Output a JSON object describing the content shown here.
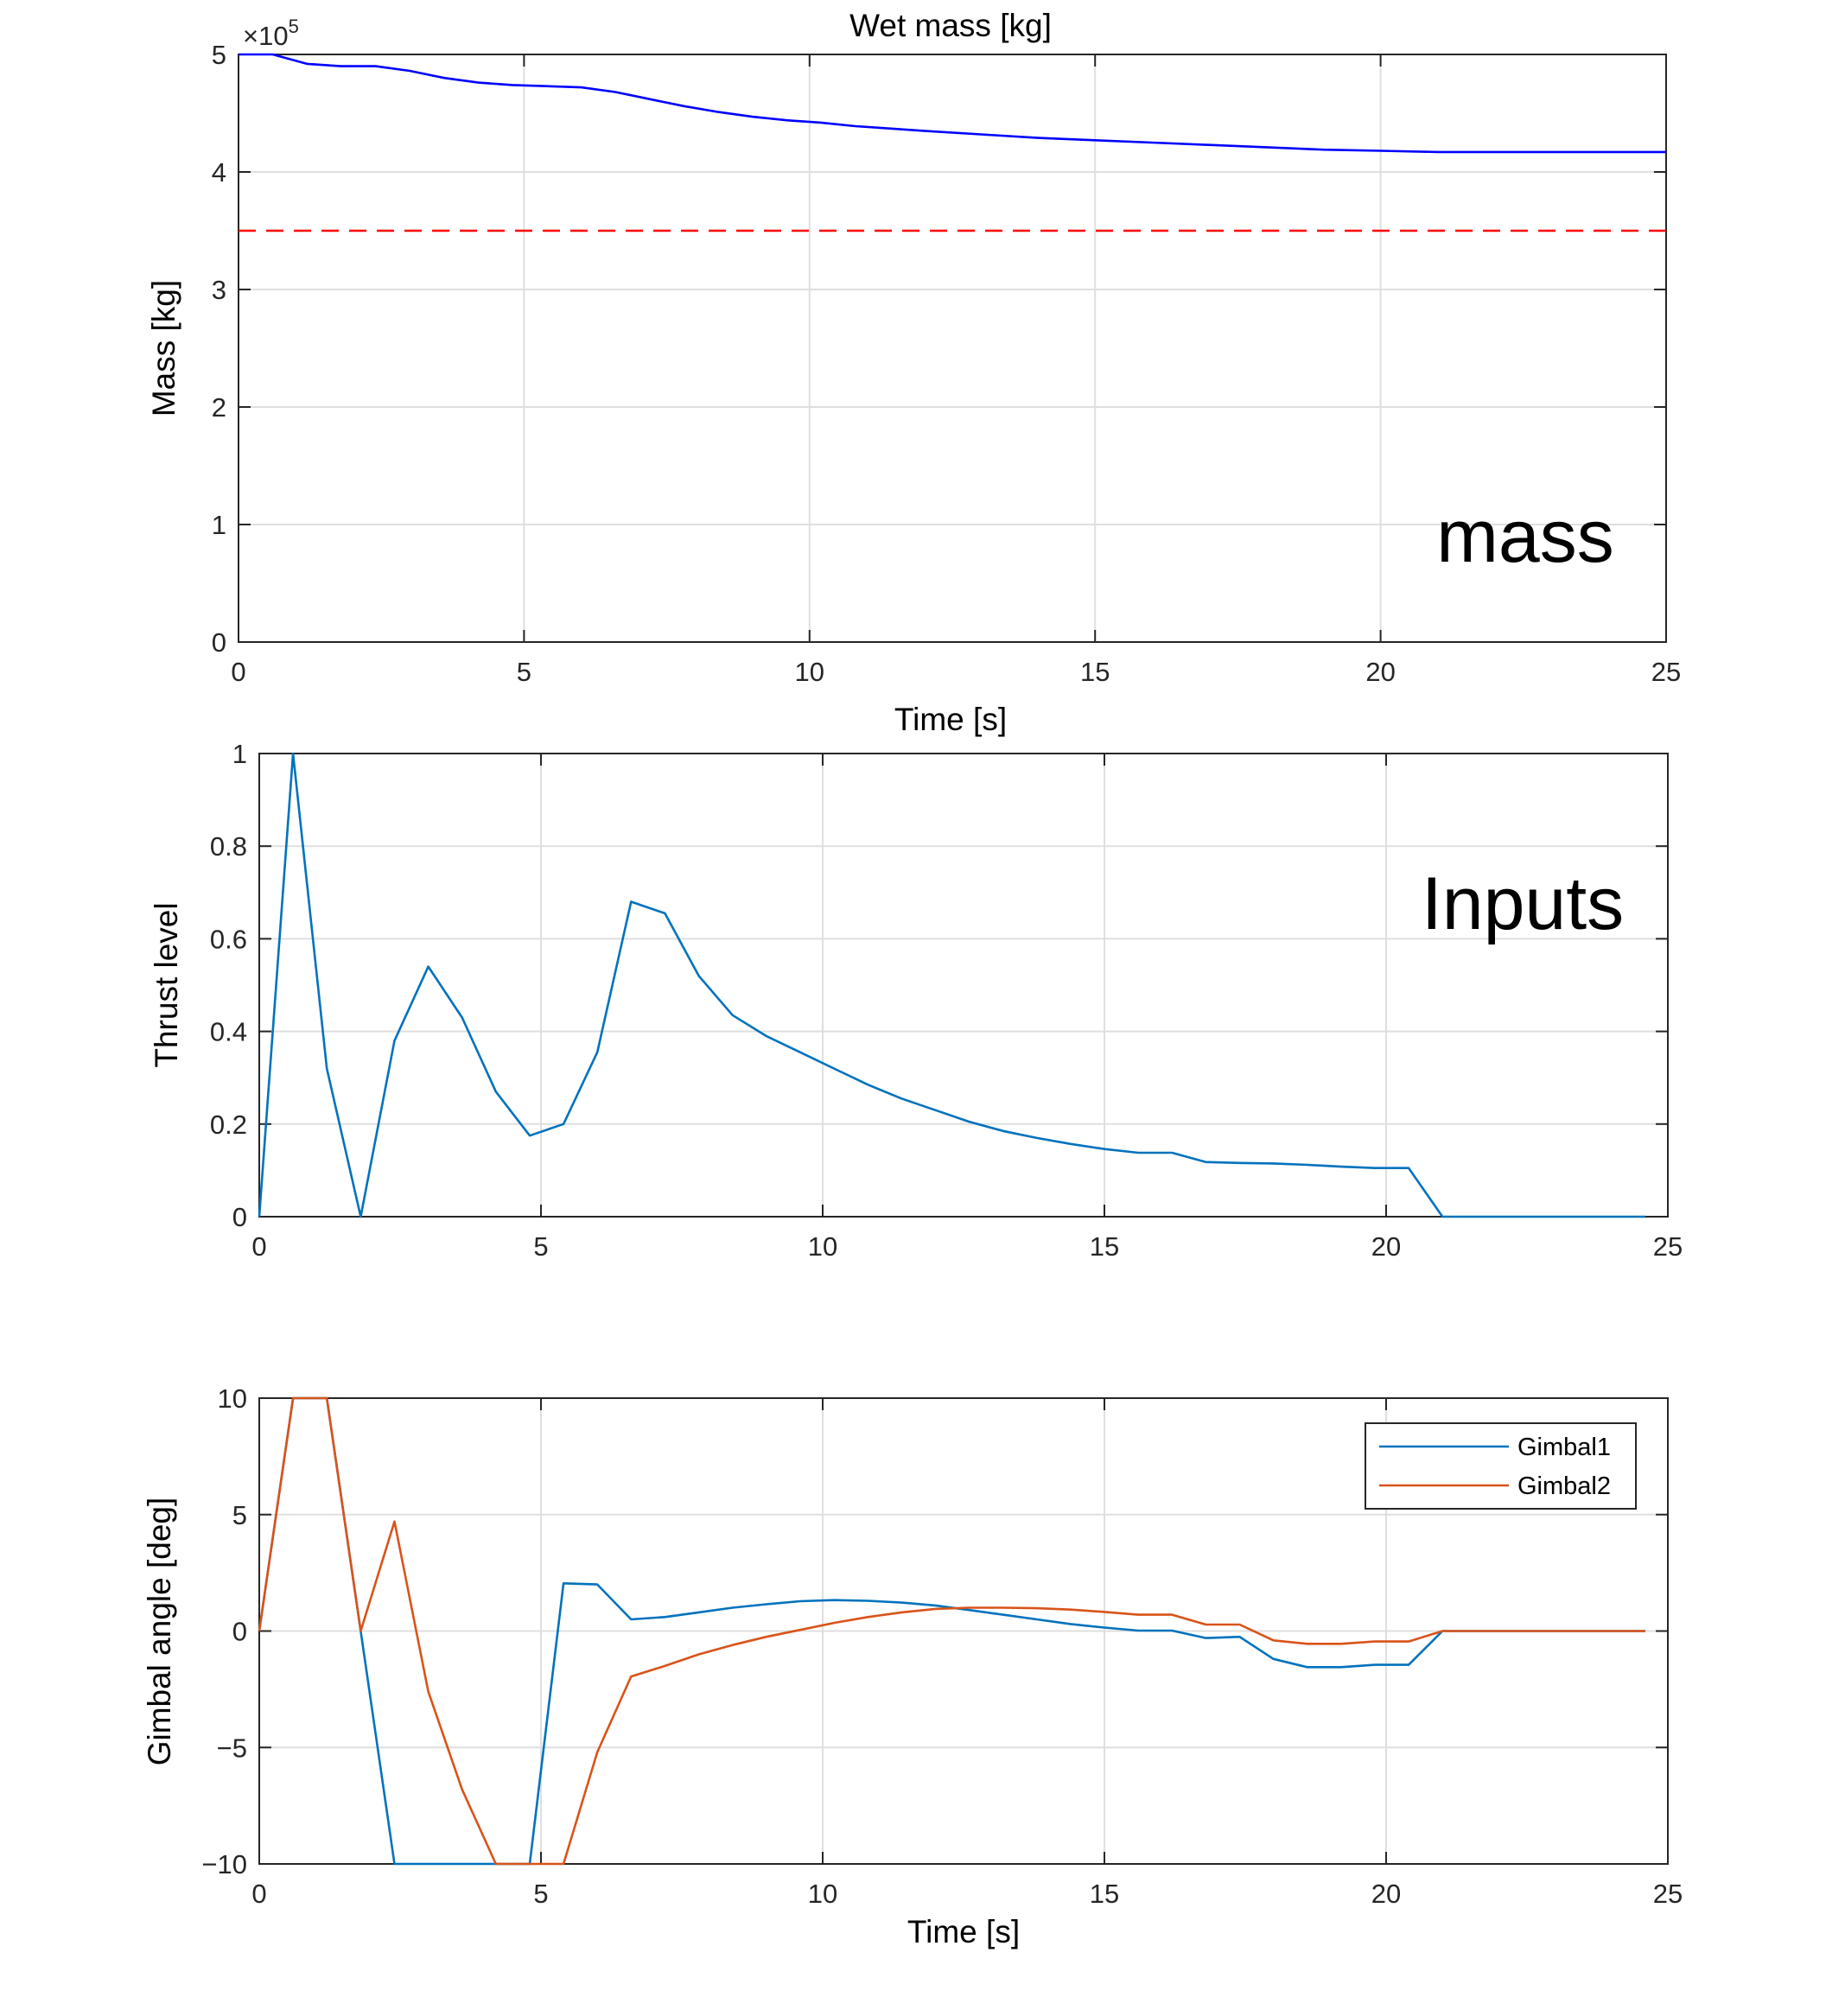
{
  "colors": {
    "blue": "#0072BD",
    "orange": "#D95319",
    "pure_blue": "#0000FF",
    "red": "#FF0000",
    "grid": "#DFDFDF",
    "axis": "#262626"
  },
  "chart_data": [
    {
      "type": "line",
      "title": "Wet mass [kg]",
      "xlabel": "Time [s]",
      "ylabel": "Mass [kg]",
      "annotation": "mass",
      "exponent_base": "×10",
      "exponent_power": "5",
      "xlim": [
        0,
        25
      ],
      "ylim": [
        0,
        5
      ],
      "grid": true,
      "xticks": [
        0,
        5,
        10,
        15,
        20,
        25
      ],
      "yticks": [
        0,
        1,
        2,
        3,
        4,
        5
      ],
      "xtick_labels": [
        "0",
        "5",
        "10",
        "15",
        "20",
        "25"
      ],
      "ytick_labels": [
        "0",
        "1",
        "2",
        "3",
        "4",
        "5"
      ],
      "series": [
        {
          "color": "#0000FF",
          "dash": false,
          "x": [
            0,
            0.6,
            1.2,
            1.8,
            2.4,
            3.0,
            3.6,
            4.2,
            4.8,
            5.4,
            6.0,
            6.6,
            7.2,
            7.8,
            8.4,
            9.0,
            9.6,
            10.2,
            10.8,
            11.4,
            12.0,
            13.0,
            14.0,
            15.0,
            16.0,
            17.0,
            18.0,
            19.0,
            20.0,
            21.0,
            25.0
          ],
          "y": [
            5.0,
            5.0,
            4.92,
            4.9,
            4.9,
            4.86,
            4.8,
            4.76,
            4.74,
            4.73,
            4.72,
            4.68,
            4.62,
            4.56,
            4.51,
            4.47,
            4.44,
            4.42,
            4.39,
            4.37,
            4.35,
            4.32,
            4.29,
            4.27,
            4.25,
            4.23,
            4.21,
            4.19,
            4.18,
            4.17,
            4.17
          ]
        },
        {
          "color": "#FF0000",
          "dash": true,
          "x": [
            0,
            25
          ],
          "y": [
            3.5,
            3.5
          ]
        }
      ]
    },
    {
      "type": "line",
      "title": "",
      "xlabel": "",
      "ylabel": "Thrust level",
      "annotation": "Inputs",
      "xlim": [
        0,
        25
      ],
      "ylim": [
        0,
        1
      ],
      "grid": true,
      "xticks": [
        0,
        5,
        10,
        15,
        20,
        25
      ],
      "yticks": [
        0,
        0.2,
        0.4,
        0.6,
        0.8,
        1
      ],
      "xtick_labels": [
        "0",
        "5",
        "10",
        "15",
        "20",
        "25"
      ],
      "ytick_labels": [
        "0",
        "0.2",
        "0.4",
        "0.6",
        "0.8",
        "1"
      ],
      "series": [
        {
          "color": "#0072BD",
          "dash": false,
          "x": [
            0,
            0.6,
            1.2,
            1.8,
            2.4,
            3.0,
            3.6,
            4.2,
            4.8,
            5.4,
            6.0,
            6.6,
            7.2,
            7.8,
            8.4,
            9.0,
            9.6,
            10.2,
            10.8,
            11.4,
            12.0,
            12.6,
            13.2,
            13.8,
            14.4,
            15.0,
            15.6,
            16.2,
            16.8,
            17.4,
            18.0,
            18.6,
            19.2,
            19.8,
            20.4,
            21.0,
            24.6
          ],
          "y": [
            0,
            1.0,
            0.32,
            0,
            0.38,
            0.54,
            0.43,
            0.27,
            0.175,
            0.2,
            0.355,
            0.68,
            0.655,
            0.52,
            0.435,
            0.39,
            0.355,
            0.32,
            0.285,
            0.255,
            0.23,
            0.205,
            0.185,
            0.17,
            0.157,
            0.146,
            0.138,
            0.138,
            0.118,
            0.116,
            0.115,
            0.112,
            0.108,
            0.105,
            0.105,
            0,
            0
          ]
        }
      ]
    },
    {
      "type": "line",
      "title": "",
      "xlabel": "Time [s]",
      "ylabel": "Gimbal angle [deg]",
      "xlim": [
        0,
        25
      ],
      "ylim": [
        -10,
        10
      ],
      "grid": true,
      "xticks": [
        0,
        5,
        10,
        15,
        20,
        25
      ],
      "yticks": [
        -10,
        -5,
        0,
        5,
        10
      ],
      "xtick_labels": [
        "0",
        "5",
        "10",
        "15",
        "20",
        "25"
      ],
      "ytick_labels": [
        "−10",
        "−5",
        "0",
        "5",
        "10"
      ],
      "legend": {
        "placement": "top-right",
        "entries": [
          "Gimbal1",
          "Gimbal2"
        ]
      },
      "series": [
        {
          "name": "Gimbal1",
          "color": "#0072BD",
          "dash": false,
          "x": [
            0,
            0.6,
            1.2,
            1.8,
            2.4,
            3.0,
            3.6,
            4.2,
            4.8,
            5.4,
            6.0,
            6.6,
            7.2,
            7.8,
            8.4,
            9.0,
            9.6,
            10.2,
            10.8,
            11.4,
            12.0,
            12.6,
            13.2,
            13.8,
            14.4,
            15.0,
            15.6,
            16.2,
            16.8,
            17.4,
            18.0,
            18.6,
            19.2,
            19.8,
            20.4,
            21.0,
            24.6
          ],
          "y": [
            0,
            10,
            10,
            0,
            -10,
            -10,
            -10,
            -10,
            -10,
            2.05,
            2.0,
            0.5,
            0.6,
            0.8,
            1.0,
            1.15,
            1.28,
            1.33,
            1.3,
            1.22,
            1.1,
            0.9,
            0.7,
            0.5,
            0.3,
            0.15,
            0.02,
            0.02,
            -0.3,
            -0.25,
            -1.2,
            -1.55,
            -1.55,
            -1.45,
            -1.45,
            0,
            0
          ]
        },
        {
          "name": "Gimbal2",
          "color": "#D95319",
          "dash": false,
          "x": [
            0,
            0.6,
            1.2,
            1.8,
            2.4,
            3.0,
            3.6,
            4.2,
            4.8,
            5.4,
            6.0,
            6.6,
            7.2,
            7.8,
            8.4,
            9.0,
            9.6,
            10.2,
            10.8,
            11.4,
            12.0,
            12.6,
            13.2,
            13.8,
            14.4,
            15.0,
            15.6,
            16.2,
            16.8,
            17.4,
            18.0,
            18.6,
            19.2,
            19.8,
            20.4,
            21.0,
            24.6
          ],
          "y": [
            0,
            10,
            10,
            0,
            4.7,
            -2.6,
            -6.8,
            -10,
            -10,
            -10,
            -5.2,
            -1.95,
            -1.5,
            -1.0,
            -0.6,
            -0.25,
            0.05,
            0.35,
            0.6,
            0.8,
            0.95,
            1.0,
            1.0,
            0.98,
            0.92,
            0.82,
            0.7,
            0.7,
            0.28,
            0.28,
            -0.4,
            -0.55,
            -0.55,
            -0.45,
            -0.45,
            0,
            0
          ]
        }
      ]
    }
  ]
}
